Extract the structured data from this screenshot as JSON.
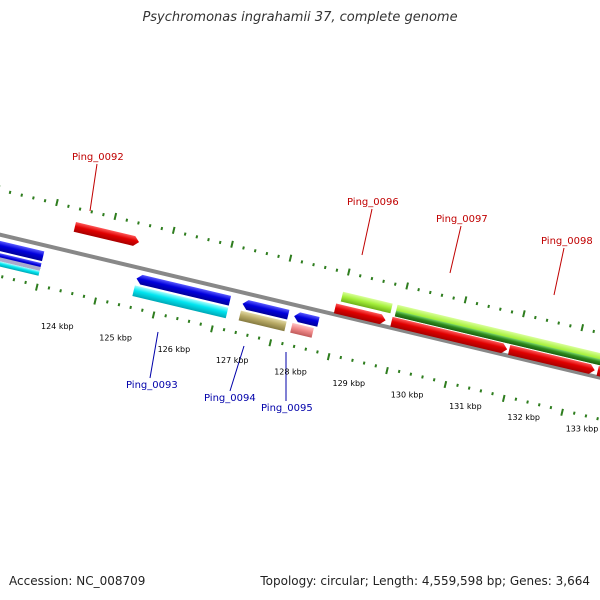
{
  "title": "Psychromonas ingrahamii 37, complete genome",
  "footer": {
    "accession": "Accession: NC_008709",
    "summary": "Topology: circular; Length: 4,559,598 bp; Genes: 3,664"
  },
  "scale": {
    "ticks": [
      "124 kbp",
      "125 kbp",
      "126 kbp",
      "127 kbp",
      "128 kbp",
      "129 kbp",
      "130 kbp",
      "131 kbp",
      "132 kbp",
      "133 kbp"
    ]
  },
  "gene_labels_top": [
    "Ping_0092",
    "Ping_0096",
    "Ping_0097",
    "Ping_0098"
  ],
  "gene_labels_bottom": [
    "Ping_0093",
    "Ping_0094",
    "Ping_0095"
  ],
  "colors": {
    "backbone": "#888888",
    "tick": "#2e7d1e",
    "cds_red": "#e00000",
    "cds_blue": "#0000dd",
    "cds_cyan": "#00e5f0",
    "cds_lime": "#a6f03c",
    "cds_green": "#2e8b1e",
    "cds_khaki": "#b8aa66",
    "cds_pink": "#f08a8a"
  }
}
